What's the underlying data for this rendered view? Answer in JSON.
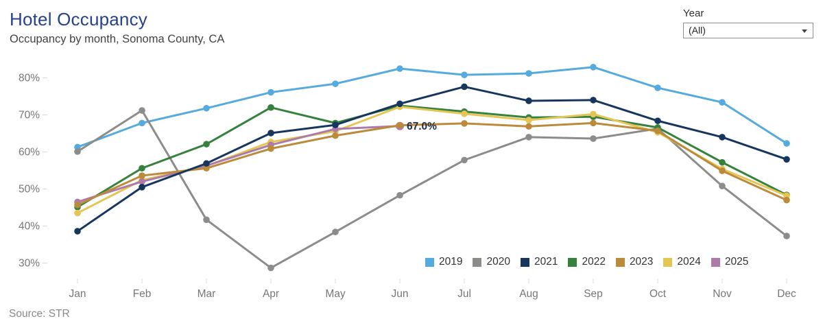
{
  "header": {
    "title": "Hotel Occupancy",
    "subtitle": "Occupancy by month, Sonoma County, CA"
  },
  "year_filter": {
    "label": "Year",
    "value": "(All)"
  },
  "source": "Source: STR",
  "chart_data": {
    "type": "line",
    "title": "Hotel Occupancy",
    "xlabel": "",
    "ylabel": "",
    "grid": false,
    "legend_position": "bottom-right",
    "ylim": [
      25,
      85
    ],
    "y_ticks": [
      30,
      40,
      50,
      60,
      70,
      80
    ],
    "months": [
      "Jan",
      "Feb",
      "Mar",
      "Apr",
      "May",
      "Jun",
      "Jul",
      "Aug",
      "Sep",
      "Oct",
      "Nov",
      "Dec"
    ],
    "series": [
      {
        "name": "2019",
        "color": "#55abdd",
        "values": [
          61.3,
          67.8,
          71.8,
          76.1,
          78.4,
          82.5,
          80.8,
          81.2,
          82.9,
          77.3,
          73.4,
          62.3
        ]
      },
      {
        "name": "2020",
        "color": "#8c8c8a",
        "values": [
          60.1,
          71.2,
          41.7,
          28.7,
          38.4,
          48.3,
          57.8,
          64.0,
          63.6,
          66.3,
          50.8,
          37.3
        ]
      },
      {
        "name": "2021",
        "color": "#17365d",
        "values": [
          38.6,
          50.5,
          56.9,
          65.1,
          67.3,
          73.0,
          77.6,
          73.8,
          74.0,
          68.4,
          64.0,
          58.0
        ]
      },
      {
        "name": "2022",
        "color": "#35813d",
        "values": [
          45.1,
          55.6,
          62.1,
          72.0,
          67.8,
          72.5,
          70.9,
          69.3,
          69.5,
          66.6,
          57.2,
          48.4
        ]
      },
      {
        "name": "2023",
        "color": "#bb8a3b",
        "values": [
          45.7,
          53.6,
          55.6,
          60.9,
          64.4,
          67.2,
          67.7,
          66.9,
          67.8,
          65.7,
          54.9,
          47.0
        ]
      },
      {
        "name": "2024",
        "color": "#e5c654",
        "values": [
          43.5,
          52.4,
          56.2,
          62.7,
          65.6,
          72.2,
          70.3,
          68.6,
          70.2,
          65.3,
          55.4,
          48.2
        ]
      },
      {
        "name": "2025",
        "color": "#ae7ba9",
        "values": [
          46.5,
          52.0,
          56.3,
          61.9,
          66.2,
          67.0
        ]
      }
    ],
    "annotation": {
      "text": "67.0%",
      "series": "2025",
      "month": "Jun",
      "value": 67.0
    }
  }
}
